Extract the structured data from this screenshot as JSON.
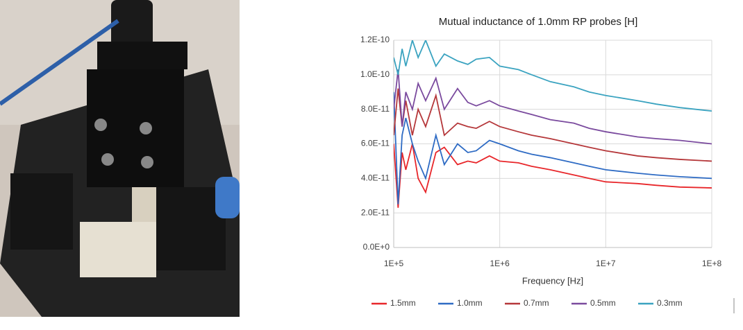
{
  "chart_data": {
    "type": "line",
    "title": "Mutual inductance of 1.0mm RP probes [H]",
    "x_label": "Frequency [Hz]",
    "x": [
      100000,
      110000,
      120000,
      130000,
      150000,
      170000,
      200000,
      250000,
      300000,
      400000,
      500000,
      600000,
      800000,
      1000000,
      1500000,
      2000000,
      3000000,
      5000000,
      7000000,
      10000000,
      20000000,
      30000000,
      50000000,
      100000000
    ],
    "xscale": "log",
    "xlim": [
      100000,
      100000000
    ],
    "xticks": [
      {
        "value": 100000,
        "label": "1E+5"
      },
      {
        "value": 1000000,
        "label": "1E+6"
      },
      {
        "value": 10000000,
        "label": "1E+7"
      },
      {
        "value": 100000000,
        "label": "1E+8"
      }
    ],
    "ylim": [
      0,
      1.2e-10
    ],
    "yticks": [
      {
        "value": 0,
        "label": "0.0E+0"
      },
      {
        "value": 2e-11,
        "label": "2.0E-11"
      },
      {
        "value": 4e-11,
        "label": "4.0E-11"
      },
      {
        "value": 6e-11,
        "label": "6.0E-11"
      },
      {
        "value": 8e-11,
        "label": "8.0E-11"
      },
      {
        "value": 1e-10,
        "label": "1.0E-10"
      },
      {
        "value": 1.2e-10,
        "label": "1.2E-10"
      }
    ],
    "grid": true,
    "legend": "bottom",
    "series": [
      {
        "name": "1.5mm",
        "color": "#e8262a",
        "values": [
          6e-11,
          2.3e-11,
          5.5e-11,
          4.5e-11,
          6e-11,
          4e-11,
          3.2e-11,
          5.5e-11,
          5.8e-11,
          4.8e-11,
          5e-11,
          4.9e-11,
          5.3e-11,
          5e-11,
          4.9e-11,
          4.7e-11,
          4.5e-11,
          4.2e-11,
          4e-11,
          3.8e-11,
          3.7e-11,
          3.6e-11,
          3.5e-11,
          3.45e-11
        ]
      },
      {
        "name": "1.0mm",
        "color": "#2e6bc4",
        "values": [
          9e-11,
          2.5e-11,
          6.5e-11,
          7.5e-11,
          6e-11,
          5e-11,
          4e-11,
          6.5e-11,
          4.8e-11,
          6e-11,
          5.5e-11,
          5.6e-11,
          6.2e-11,
          6e-11,
          5.6e-11,
          5.4e-11,
          5.2e-11,
          4.9e-11,
          4.7e-11,
          4.5e-11,
          4.3e-11,
          4.2e-11,
          4.1e-11,
          4e-11
        ]
      },
      {
        "name": "0.7mm",
        "color": "#b5373a",
        "values": [
          6.5e-11,
          9.2e-11,
          7e-11,
          8.5e-11,
          6.5e-11,
          8e-11,
          7e-11,
          8.8e-11,
          6.5e-11,
          7.2e-11,
          7e-11,
          6.9e-11,
          7.3e-11,
          7e-11,
          6.7e-11,
          6.5e-11,
          6.3e-11,
          6e-11,
          5.8e-11,
          5.6e-11,
          5.3e-11,
          5.2e-11,
          5.1e-11,
          5e-11
        ]
      },
      {
        "name": "0.5mm",
        "color": "#7a4a9e",
        "values": [
          8e-11,
          1.03e-10,
          7e-11,
          9e-11,
          8e-11,
          9.5e-11,
          8.5e-11,
          9.8e-11,
          8e-11,
          9.2e-11,
          8.4e-11,
          8.2e-11,
          8.5e-11,
          8.2e-11,
          7.9e-11,
          7.7e-11,
          7.4e-11,
          7.2e-11,
          6.9e-11,
          6.7e-11,
          6.4e-11,
          6.3e-11,
          6.2e-11,
          6e-11
        ]
      },
      {
        "name": "0.3mm",
        "color": "#3aa3c0",
        "values": [
          1.1e-10,
          1e-10,
          1.15e-10,
          1.05e-10,
          1.2e-10,
          1.1e-10,
          1.2e-10,
          1.05e-10,
          1.12e-10,
          1.08e-10,
          1.06e-10,
          1.09e-10,
          1.1e-10,
          1.05e-10,
          1.03e-10,
          1e-10,
          9.6e-11,
          9.3e-11,
          9e-11,
          8.8e-11,
          8.5e-11,
          8.3e-11,
          8.1e-11,
          7.9e-11
        ]
      }
    ]
  }
}
